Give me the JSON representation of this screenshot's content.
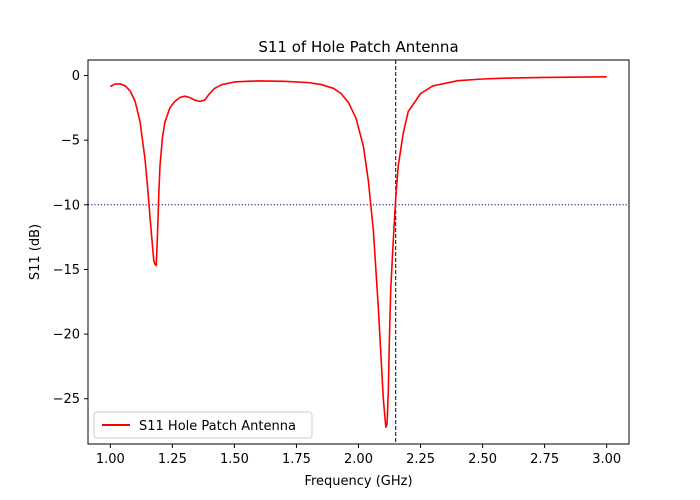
{
  "chart_data": {
    "type": "line",
    "title": "S11 of Hole Patch Antenna",
    "xlabel": "Frequency (GHz)",
    "ylabel": "S11 (dB)",
    "xlim": [
      0.91,
      3.09
    ],
    "ylim": [
      -28.5,
      1.2
    ],
    "xticks": [
      1.0,
      1.25,
      1.5,
      1.75,
      2.0,
      2.25,
      2.5,
      2.75,
      3.0
    ],
    "xtick_labels": [
      "1.00",
      "1.25",
      "1.50",
      "1.75",
      "2.00",
      "2.25",
      "2.50",
      "2.75",
      "3.00"
    ],
    "yticks": [
      0,
      -5,
      -10,
      -15,
      -20,
      -25
    ],
    "ytick_labels": [
      "0",
      "−5",
      "−10",
      "−15",
      "−20",
      "−25"
    ],
    "grid": false,
    "legend_position": "lower-left",
    "series": [
      {
        "name": "S11 Hole Patch Antenna",
        "color": "#ff0000",
        "x": [
          1.0,
          1.02,
          1.04,
          1.06,
          1.08,
          1.1,
          1.12,
          1.14,
          1.15,
          1.16,
          1.17,
          1.175,
          1.18,
          1.185,
          1.19,
          1.195,
          1.2,
          1.21,
          1.22,
          1.24,
          1.26,
          1.28,
          1.3,
          1.32,
          1.34,
          1.36,
          1.38,
          1.4,
          1.42,
          1.45,
          1.5,
          1.55,
          1.6,
          1.7,
          1.8,
          1.85,
          1.9,
          1.93,
          1.96,
          1.99,
          2.02,
          2.04,
          2.06,
          2.08,
          2.09,
          2.1,
          2.11,
          2.115,
          2.12,
          2.125,
          2.13,
          2.14,
          2.15,
          2.16,
          2.18,
          2.2,
          2.25,
          2.3,
          2.4,
          2.5,
          2.6,
          2.75,
          2.9,
          3.0
        ],
        "y": [
          -0.85,
          -0.65,
          -0.65,
          -0.8,
          -1.2,
          -2.0,
          -3.6,
          -6.5,
          -8.6,
          -11.0,
          -13.2,
          -14.3,
          -14.6,
          -14.7,
          -12.3,
          -9.3,
          -7.0,
          -4.8,
          -3.6,
          -2.5,
          -2.0,
          -1.7,
          -1.6,
          -1.7,
          -1.9,
          -2.0,
          -1.9,
          -1.4,
          -1.0,
          -0.7,
          -0.5,
          -0.45,
          -0.42,
          -0.45,
          -0.55,
          -0.7,
          -1.0,
          -1.4,
          -2.1,
          -3.3,
          -5.5,
          -8.2,
          -12.0,
          -18.0,
          -21.5,
          -25.0,
          -27.2,
          -27.0,
          -24.5,
          -20.0,
          -16.5,
          -12.8,
          -9.5,
          -7.0,
          -4.5,
          -2.8,
          -1.4,
          -0.8,
          -0.4,
          -0.27,
          -0.2,
          -0.15,
          -0.12,
          -0.1
        ]
      }
    ],
    "reference_lines": [
      {
        "orientation": "horizontal",
        "value": -10,
        "color": "#00008b",
        "style": "dotted"
      },
      {
        "orientation": "vertical",
        "value": 2.15,
        "color": "#000000",
        "style": "dashed"
      }
    ]
  }
}
